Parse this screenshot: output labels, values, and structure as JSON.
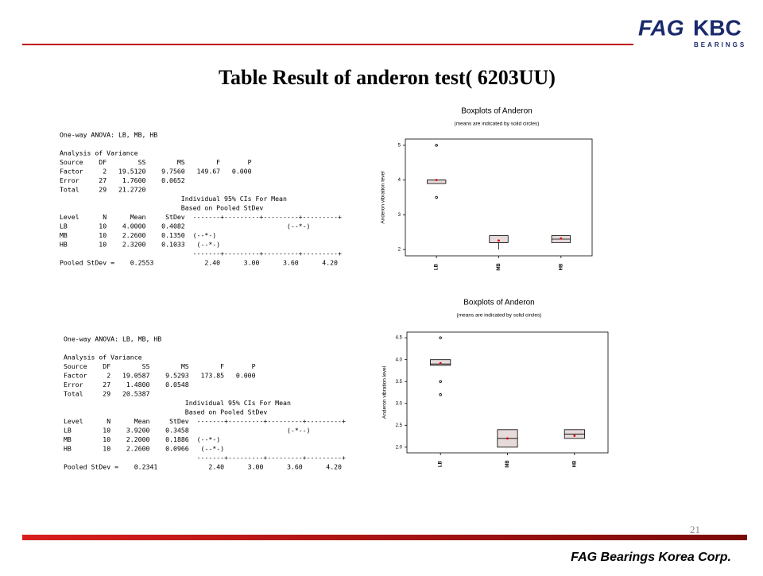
{
  "header": {
    "title": "Table Result of anderon test( 6203UU)",
    "logo_left": "FAG",
    "logo_right": "KBC",
    "logo_sub": "BEARINGS"
  },
  "footer": {
    "company": "FAG Bearings Korea Corp.",
    "page": "21"
  },
  "anova": [
    {
      "lines": [
        "One-way ANOVA: LB, MB, HB",
        "Analysis of Variance",
        "Source    DF        SS        MS        F       P",
        "Factor     2   19.5120    9.7560   149.67   0.000",
        "Error     27    1.7600    0.0652",
        "Total     29   21.2720",
        "                               Individual 95% CIs For Mean",
        "                               Based on Pooled StDev",
        "Level      N      Mean     StDev  -------+---------+---------+---------+",
        "LB        10    4.0000    0.4082                          (--*-)",
        "MB        10    2.2600    0.1350  (--*-)",
        "HB        10    2.3200    0.1033   (--*-)",
        "                                  -------+---------+---------+---------+",
        "Pooled StDev =    0.2553             2.40      3.00      3.60      4.20"
      ]
    },
    {
      "lines": [
        "One-way ANOVA: LB, MB, HB",
        "Analysis of Variance",
        "Source    DF        SS        MS        F       P",
        "Factor     2   19.0587    9.5293   173.85   0.000",
        "Error     27    1.4800    0.0548",
        "Total     29   20.5387",
        "                               Individual 95% CIs For Mean",
        "                               Based on Pooled StDev",
        "Level      N      Mean     StDev  -------+---------+---------+---------+",
        "LB        10    3.9200    0.3458                         (-*--)",
        "MB        10    2.2000    0.1886  (--*-)",
        "HB        10    2.2600    0.0966   (--*-)",
        "                                  -------+---------+---------+---------+",
        "Pooled StDev =    0.2341             2.40      3.00      3.60      4.20"
      ]
    }
  ],
  "chart_data": [
    {
      "type": "boxplot",
      "title": "Boxplots of Anderon",
      "subtitle": "(means are indicated by solid circles)",
      "y_label": "Anderon vibration level",
      "categories": [
        "LB",
        "MB",
        "HB"
      ],
      "q1": [
        3.9,
        2.2,
        2.2
      ],
      "median": [
        4.0,
        2.2,
        2.3
      ],
      "q3": [
        4.0,
        2.4,
        2.4
      ],
      "whisker_low": [
        null,
        2.0,
        null
      ],
      "mean": [
        4.0,
        2.26,
        2.32
      ],
      "outliers": [
        [
          5.0,
          3.5
        ],
        [],
        []
      ],
      "ylim": [
        1.82,
        5.18
      ],
      "yticks": [
        2,
        3,
        4,
        5
      ],
      "box_color": "#e6dada",
      "mean_color": "#dd0000"
    },
    {
      "type": "boxplot",
      "title": "Boxplots of  Anderon",
      "subtitle": "(means are indicated by solid circles)",
      "y_label": "Anderon vibration level",
      "categories": [
        "LB",
        "MB",
        "HB"
      ],
      "q1": [
        3.87,
        2.0,
        2.2
      ],
      "median": [
        3.9,
        2.2,
        2.3
      ],
      "q3": [
        4.0,
        2.4,
        2.4
      ],
      "whisker_low": [
        null,
        null,
        null
      ],
      "mean": [
        3.92,
        2.2,
        2.26
      ],
      "outliers": [
        [
          4.5,
          3.5,
          3.2
        ],
        [],
        []
      ],
      "ylim": [
        1.87,
        4.63
      ],
      "yticks": [
        {
          "value": 2,
          "label": "2.0"
        },
        2.5,
        {
          "value": 3,
          "label": "3.0"
        },
        3.5,
        {
          "value": 4,
          "label": "4.0"
        },
        4.5
      ],
      "box_color": "#e6dada",
      "mean_color": "#dd0000"
    }
  ]
}
